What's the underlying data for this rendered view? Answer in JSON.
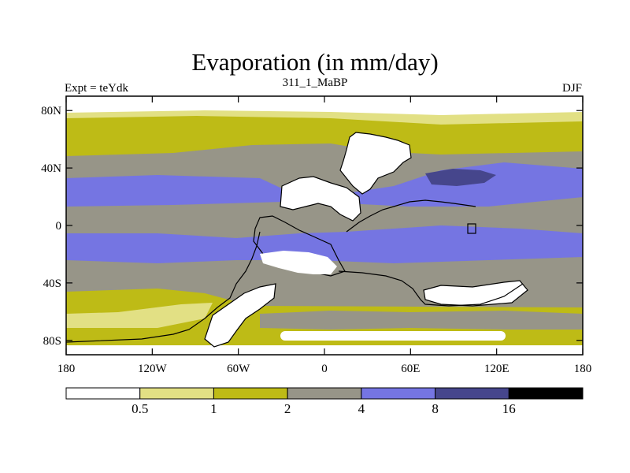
{
  "title": "Evaporation (in mm/day)",
  "subtitle_left": "Expt = teYdk",
  "subtitle_center": "311_1_MaBP",
  "subtitle_right": "DJF",
  "axes": {
    "lat_ticks": [
      "80N",
      "40N",
      "0",
      "40S",
      "80S"
    ],
    "lon_ticks": [
      "180",
      "120W",
      "60W",
      "0",
      "60E",
      "120E",
      "180"
    ],
    "lat_range": [
      -90,
      90
    ],
    "lon_range": [
      -180,
      180
    ]
  },
  "colorbar": {
    "labels": [
      "0.5",
      "1",
      "2",
      "4",
      "8",
      "16"
    ],
    "colors": [
      "#ffffff",
      "#e2e084",
      "#bebb16",
      "#979588",
      "#7575e2",
      "#46468c",
      "#000000"
    ]
  },
  "palette": {
    "white": "#ffffff",
    "pale": "#e2e084",
    "olive": "#bebb16",
    "gray": "#979588",
    "blue": "#7575e2",
    "darkblue": "#46468c",
    "black": "#000000"
  }
}
